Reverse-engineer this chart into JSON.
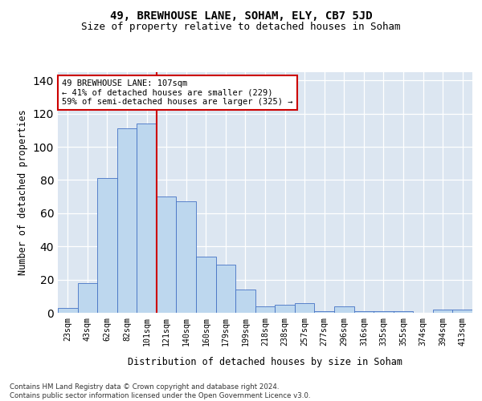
{
  "title": "49, BREWHOUSE LANE, SOHAM, ELY, CB7 5JD",
  "subtitle": "Size of property relative to detached houses in Soham",
  "xlabel": "Distribution of detached houses by size in Soham",
  "ylabel": "Number of detached properties",
  "bar_labels": [
    "23sqm",
    "43sqm",
    "62sqm",
    "82sqm",
    "101sqm",
    "121sqm",
    "140sqm",
    "160sqm",
    "179sqm",
    "199sqm",
    "218sqm",
    "238sqm",
    "257sqm",
    "277sqm",
    "296sqm",
    "316sqm",
    "335sqm",
    "355sqm",
    "374sqm",
    "394sqm",
    "413sqm"
  ],
  "bar_values": [
    3,
    18,
    81,
    111,
    114,
    70,
    67,
    34,
    29,
    14,
    4,
    5,
    6,
    1,
    4,
    1,
    1,
    1,
    0,
    2,
    2
  ],
  "bar_color": "#bdd7ee",
  "bar_edgecolor": "#4472c4",
  "vline_x": 4.5,
  "vline_color": "#cc0000",
  "annotation_lines": [
    "49 BREWHOUSE LANE: 107sqm",
    "← 41% of detached houses are smaller (229)",
    "59% of semi-detached houses are larger (325) →"
  ],
  "ylim_max": 145,
  "bg_color": "#dce6f1",
  "footer_line1": "Contains HM Land Registry data © Crown copyright and database right 2024.",
  "footer_line2": "Contains public sector information licensed under the Open Government Licence v3.0."
}
